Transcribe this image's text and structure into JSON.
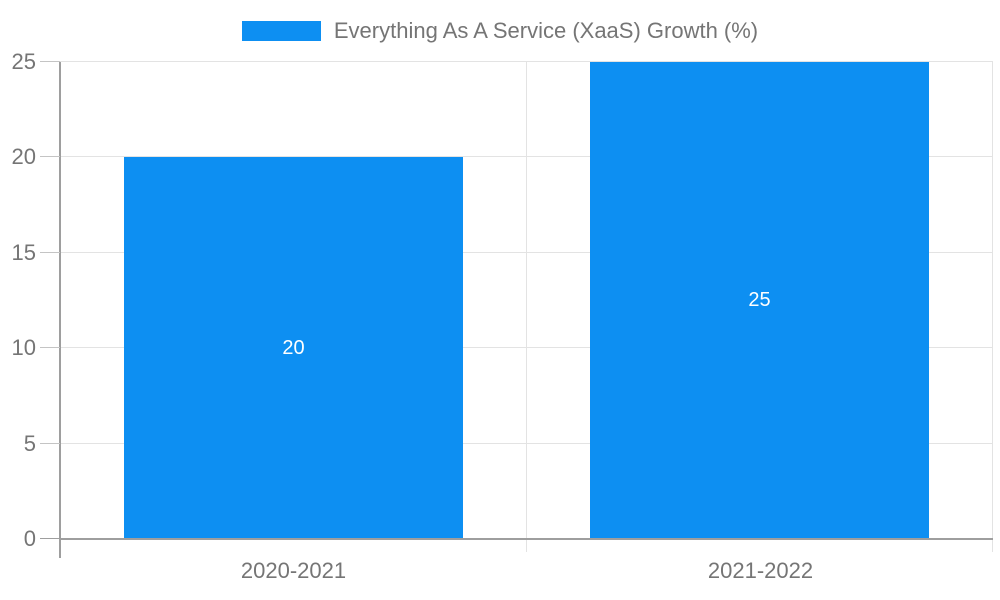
{
  "legend": {
    "label": "Everything As A Service (XaaS) Growth (%)"
  },
  "chart_data": {
    "type": "bar",
    "title": "Everything As A Service (XaaS) Growth (%)",
    "categories": [
      "2020-2021",
      "2021-2022"
    ],
    "series": [
      {
        "name": "Everything As A Service (XaaS) Growth (%)",
        "values": [
          20,
          25
        ]
      }
    ],
    "values": [
      20,
      25
    ],
    "data_labels": [
      "20",
      "25"
    ],
    "xlabel": "",
    "ylabel": "",
    "ylim": [
      0,
      25
    ],
    "yticks": [
      0,
      5,
      10,
      15,
      20,
      25
    ],
    "grid": true,
    "legend_position": "top-center",
    "colors": {
      "bar": "#0d8ff2",
      "data_label": "#ffffff",
      "axis_line": "#9e9e9e",
      "grid_line": "#e3e3e3",
      "tick_line": "#c4c4c4",
      "label_text": "#757575"
    }
  }
}
